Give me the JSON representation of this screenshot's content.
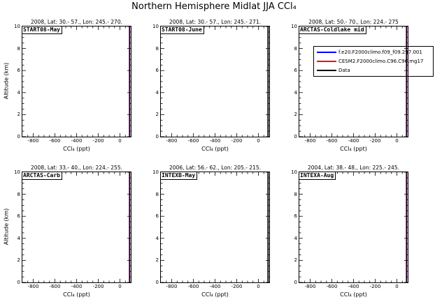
{
  "title": "Northern Hemisphere Midlat JJA CCl₄",
  "chart_data": {
    "type": "line",
    "layout": {
      "rows": 2,
      "cols": 3,
      "style": "small-multiples, vertical profile plots"
    },
    "title": "Northern Hemisphere Midlat JJA CCl₄",
    "x_axis": {
      "label": "CCl₄ (ppt)",
      "range": [
        -900,
        100
      ],
      "ticks": [
        -800,
        -600,
        -400,
        -200,
        0
      ],
      "minor_step": 50
    },
    "y_axis": {
      "label": "Altitude (km)",
      "range": [
        0,
        10
      ],
      "ticks": [
        0,
        2,
        4,
        6,
        8,
        10
      ],
      "minor_step": 0.5
    },
    "legend_position": "top-right panel, overlapping",
    "series": [
      {
        "name": "f.e20.F2000climo.f09_f09.297.001",
        "color": "#0000ff",
        "ccl4_ppt": 86,
        "alt_km": [
          0,
          10
        ]
      },
      {
        "name": "CESM2.F2000climo.C96.C96.mg17",
        "color": "#ff0000",
        "ccl4_ppt": 88.5,
        "alt_km": [
          0,
          10
        ]
      },
      {
        "name": "Data",
        "color": "#000000",
        "ccl4_ppt": 91,
        "alt_km": [
          0,
          10
        ]
      }
    ],
    "panels": [
      {
        "header": "2008, Lat: 30.- 57., Lon: 245.- 270.",
        "label": "START08-May"
      },
      {
        "header": "2008, Lat: 30.- 57., Lon: 245.- 271.",
        "label": "START08-June"
      },
      {
        "header": "2008, Lat: 50.- 70., Lon: 224.- 275",
        "label": "ARCTAS-Coldlake mid"
      },
      {
        "header": "2008, Lat: 33.- 40., Lon: 224.- 255.",
        "label": "ARCTAS-Carb"
      },
      {
        "header": "2006, Lat: 56.- 62., Lon: 205.- 215.",
        "label": "INTEXB-May"
      },
      {
        "header": "2004, Lat: 38.- 48., Lon: 225.- 245.",
        "label": "INTEXA-Aug"
      }
    ]
  }
}
